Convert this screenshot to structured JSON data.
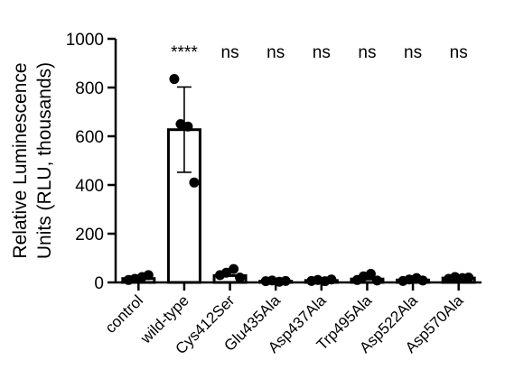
{
  "chart_data": {
    "type": "bar",
    "title": "",
    "xlabel": "",
    "ylabel": "Relative Luminescence\nUnits (RLU, thousands)",
    "ylim": [
      0,
      1000
    ],
    "yticks": [
      0,
      200,
      400,
      600,
      800,
      1000
    ],
    "grid": false,
    "categories": [
      "control",
      "wild-type",
      "Cys412Ser",
      "Glu435Ala",
      "Asp437Ala",
      "Trp495Ala",
      "Asp522Ala",
      "Asp570Ala"
    ],
    "values": [
      16,
      627,
      28,
      5,
      8,
      14,
      10,
      18
    ],
    "error": [
      [
        null,
        null
      ],
      [
        452,
        802
      ],
      [
        null,
        null
      ],
      [
        null,
        null
      ],
      [
        null,
        null
      ],
      [
        null,
        null
      ],
      [
        null,
        null
      ],
      [
        null,
        null
      ]
    ],
    "points": [
      [
        10,
        15,
        22,
        30
      ],
      [
        835,
        650,
        640,
        410
      ],
      [
        30,
        40,
        55,
        20
      ],
      [
        5,
        8,
        3,
        6
      ],
      [
        6,
        10,
        5,
        12
      ],
      [
        10,
        25,
        35,
        8
      ],
      [
        6,
        12,
        18,
        8
      ],
      [
        15,
        22,
        18,
        20
      ]
    ],
    "significance": [
      "",
      "****",
      "ns",
      "ns",
      "ns",
      "ns",
      "ns",
      "ns"
    ],
    "colors": {
      "bar_fill": "#ffffff",
      "bar_stroke": "#000000",
      "points": "#000000"
    }
  }
}
